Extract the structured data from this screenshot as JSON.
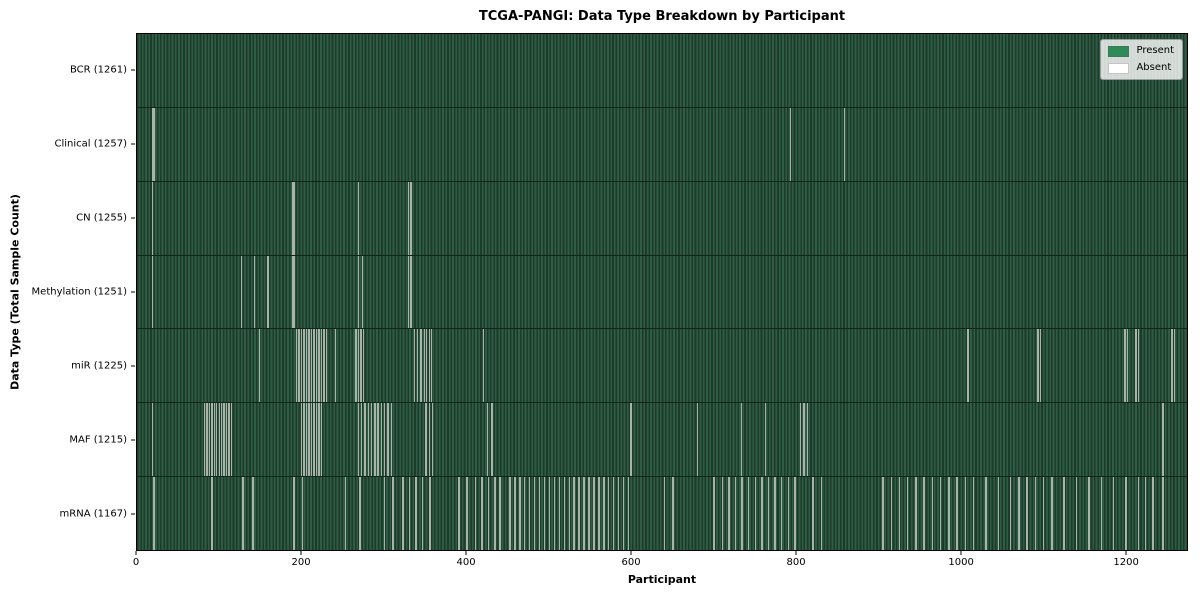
{
  "chart_data": {
    "type": "heatmap",
    "title": "TCGA-PANGI: Data Type Breakdown by Participant",
    "xlabel": "Participant",
    "ylabel": "Data Type (Total Sample Count)",
    "xlim": [
      0,
      1275
    ],
    "xticks": [
      0,
      200,
      400,
      600,
      800,
      1000,
      1200
    ],
    "grid": false,
    "legend": {
      "position": "upper right",
      "entries": [
        {
          "label": "Present",
          "color": "#2e8b57"
        },
        {
          "label": "Absent",
          "color": "#ffffff"
        }
      ]
    },
    "colors": {
      "present": "#2e8b57",
      "absent": "#ffffff",
      "band_stripe_dark": "#1d3b2b",
      "band_stripe_light": "#2e5c44",
      "absent_line": "#aab3aa"
    },
    "rows": [
      {
        "label": "BCR (1261)",
        "data_type": "BCR",
        "total_samples": 1261,
        "absent_participants": []
      },
      {
        "label": "Clinical (1257)",
        "data_type": "Clinical",
        "total_samples": 1257,
        "absent_participants": [
          18,
          20,
          793,
          858
        ]
      },
      {
        "label": "CN (1255)",
        "data_type": "CN",
        "total_samples": 1255,
        "absent_participants": [
          18,
          188,
          190,
          268,
          329,
          332
        ]
      },
      {
        "label": "Methylation (1251)",
        "data_type": "Methylation",
        "total_samples": 1251,
        "absent_participants": [
          18,
          126,
          142,
          158,
          188,
          190,
          268,
          273,
          329,
          332
        ]
      },
      {
        "label": "miR (1225)",
        "data_type": "miR",
        "total_samples": 1225,
        "absent_participants": [
          148,
          193,
          196,
          199,
          202,
          205,
          208,
          211,
          214,
          217,
          220,
          223,
          226,
          229,
          240,
          265,
          268,
          271,
          274,
          336,
          340,
          344,
          348,
          351,
          354,
          357,
          420,
          1008,
          1093,
          1096,
          1199,
          1202,
          1212,
          1215,
          1256,
          1259
        ]
      },
      {
        "label": "MAF (1215)",
        "data_type": "MAF",
        "total_samples": 1215,
        "absent_participants": [
          18,
          81,
          84,
          87,
          90,
          93,
          96,
          99,
          102,
          105,
          108,
          111,
          114,
          199,
          202,
          205,
          208,
          211,
          214,
          217,
          220,
          223,
          268,
          272,
          276,
          280,
          284,
          288,
          292,
          296,
          300,
          304,
          308,
          350,
          354,
          358,
          425,
          430,
          599,
          680,
          733,
          762,
          805,
          809,
          813,
          1245
        ]
      },
      {
        "label": "mRNA (1167)",
        "data_type": "mRNA",
        "total_samples": 1167,
        "absent_participants": [
          20,
          90,
          128,
          140,
          190,
          200,
          252,
          270,
          300,
          310,
          322,
          330,
          338,
          346,
          355,
          390,
          400,
          410,
          418,
          426,
          434,
          440,
          452,
          458,
          464,
          470,
          476,
          482,
          488,
          494,
          500,
          506,
          512,
          518,
          524,
          530,
          536,
          542,
          548,
          554,
          560,
          566,
          572,
          578,
          584,
          590,
          596,
          640,
          650,
          700,
          710,
          718,
          726,
          734,
          742,
          750,
          758,
          766,
          774,
          782,
          790,
          798,
          820,
          830,
          905,
          915,
          925,
          935,
          945,
          955,
          965,
          975,
          985,
          995,
          1005,
          1015,
          1030,
          1045,
          1060,
          1070,
          1080,
          1090,
          1100,
          1110,
          1125,
          1140,
          1155,
          1170,
          1185,
          1200,
          1215,
          1224,
          1233,
          1245
        ]
      }
    ]
  }
}
